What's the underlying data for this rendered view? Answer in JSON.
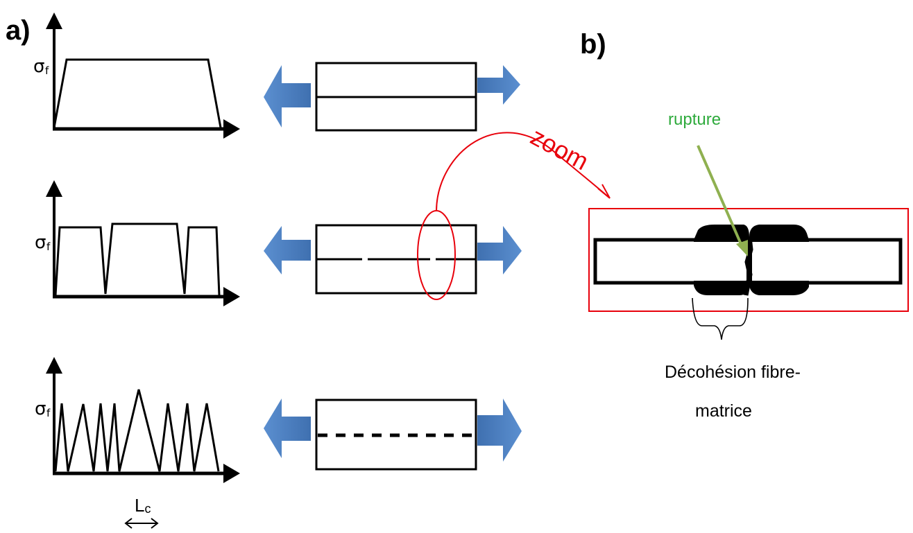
{
  "panel_a": {
    "label": "a)",
    "graphs": [
      {
        "y_symbol": "σ",
        "y_subscript": "f"
      },
      {
        "y_symbol": "σ",
        "y_subscript": "f"
      },
      {
        "y_symbol": "σ",
        "y_subscript": "f"
      }
    ],
    "length_label_main": "L",
    "length_label_sub": "c"
  },
  "panel_b": {
    "label": "b)",
    "zoom_label": "zoom",
    "rupture_label": "rupture",
    "debonding_label_line1": "Décohésion fibre-",
    "debonding_label_line2": "matrice"
  },
  "colors": {
    "arrow_fill": "#4a7ebb",
    "zoom_red": "#e8000b",
    "rupture_green": "#2eaa3c",
    "pointer_green": "#8fb050",
    "ink": "#000000"
  }
}
